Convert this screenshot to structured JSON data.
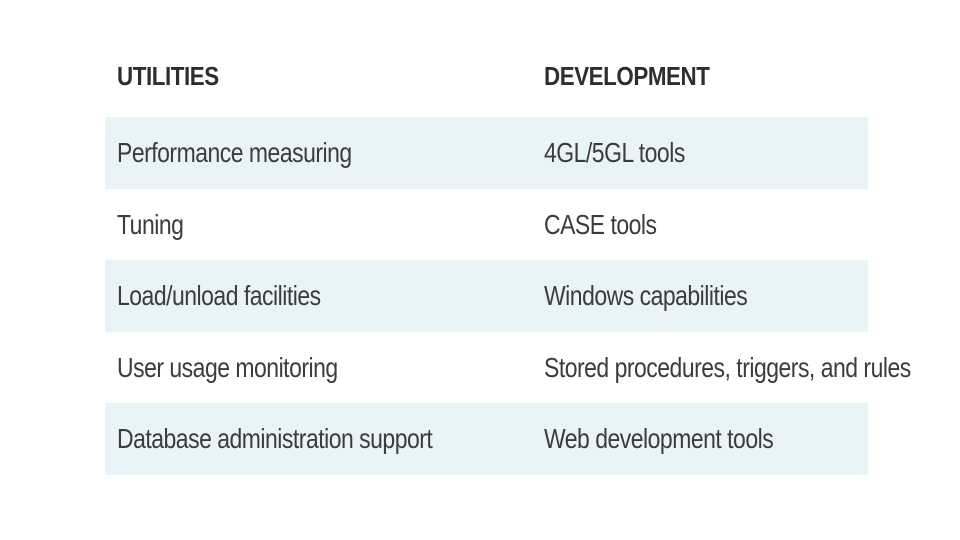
{
  "table": {
    "headers": {
      "utilities": "UTILITIES",
      "development": "DEVELOPMENT"
    },
    "rows": [
      {
        "utilities": "Performance measuring",
        "development": "4GL/5GL tools"
      },
      {
        "utilities": "Tuning",
        "development": "CASE tools"
      },
      {
        "utilities": "Load/unload facilities",
        "development": "Windows capabilities"
      },
      {
        "utilities": "User usage monitoring",
        "development": "Stored procedures, triggers, and rules"
      },
      {
        "utilities": "Database administration support",
        "development": "Web development tools"
      }
    ],
    "colors": {
      "shaded_row": "#e9f4f9",
      "text": "#3c3c3c",
      "header_text": "#2e2e2e"
    }
  }
}
